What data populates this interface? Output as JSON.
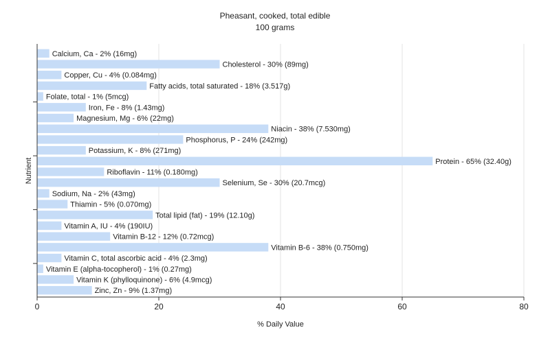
{
  "chart_data": {
    "type": "bar",
    "orientation": "horizontal",
    "title": "Pheasant, cooked, total edible",
    "subtitle": "100 grams",
    "xlabel": "% Daily Value",
    "ylabel": "Nutrient",
    "xlim": [
      0,
      80
    ],
    "xticks": [
      "0",
      "20",
      "40",
      "60",
      "80"
    ],
    "grid": true,
    "bar_color": "#c6dcf7",
    "grid_color": "#e3e3e3",
    "categories": [
      "Calcium, Ca - 2% (16mg)",
      "Cholesterol - 30% (89mg)",
      "Copper, Cu - 4% (0.084mg)",
      "Fatty acids, total saturated - 18% (3.517g)",
      "Folate, total - 1% (5mcg)",
      "Iron, Fe - 8% (1.43mg)",
      "Magnesium, Mg - 6% (22mg)",
      "Niacin - 38% (7.530mg)",
      "Phosphorus, P - 24% (242mg)",
      "Potassium, K - 8% (271mg)",
      "Protein - 65% (32.40g)",
      "Riboflavin - 11% (0.180mg)",
      "Selenium, Se - 30% (20.7mcg)",
      "Sodium, Na - 2% (43mg)",
      "Thiamin - 5% (0.070mg)",
      "Total lipid (fat) - 19% (12.10g)",
      "Vitamin A, IU - 4% (190IU)",
      "Vitamin B-12 - 12% (0.72mcg)",
      "Vitamin B-6 - 38% (0.750mg)",
      "Vitamin C, total ascorbic acid - 4% (2.3mg)",
      "Vitamin E (alpha-tocopherol) - 1% (0.27mg)",
      "Vitamin K (phylloquinone) - 6% (4.9mcg)",
      "Zinc, Zn - 9% (1.37mg)"
    ],
    "values": [
      2,
      30,
      4,
      18,
      1,
      8,
      6,
      38,
      24,
      8,
      65,
      11,
      30,
      2,
      5,
      19,
      4,
      12,
      38,
      4,
      1,
      6,
      9
    ]
  }
}
